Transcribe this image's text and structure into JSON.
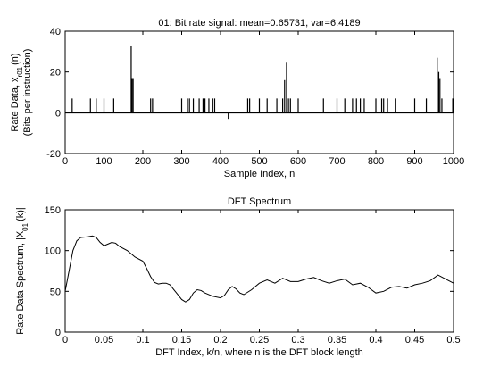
{
  "chart_data": [
    {
      "type": "spike",
      "title": "01: Bit rate signal: mean=0.65731, var=6.4189",
      "xlabel": "Sample Index, n",
      "ylabel": {
        "text": "Rate Data, x",
        "sub": "r01",
        "after": "(n)"
      },
      "ylabel2": "(Bits per instruction)",
      "color": "#000000",
      "xlim": [
        0,
        1000
      ],
      "xticks": [
        0,
        100,
        200,
        300,
        400,
        500,
        600,
        700,
        800,
        900,
        1000
      ],
      "ylim": [
        -20,
        40
      ],
      "yticks": [
        -20,
        0,
        20,
        40
      ],
      "x": [
        18,
        65,
        80,
        100,
        125,
        170,
        172,
        175,
        220,
        225,
        300,
        315,
        320,
        330,
        345,
        355,
        360,
        370,
        380,
        385,
        420,
        470,
        475,
        500,
        520,
        545,
        560,
        565,
        570,
        575,
        580,
        600,
        665,
        700,
        720,
        740,
        750,
        760,
        770,
        800,
        815,
        820,
        830,
        850,
        900,
        930,
        958,
        962,
        965,
        970,
        998
      ],
      "values": [
        7,
        7,
        7,
        7,
        7,
        33,
        17,
        17,
        7,
        7,
        7,
        7,
        7,
        7,
        7,
        7,
        7,
        7,
        7,
        7,
        -3,
        7,
        7,
        7,
        7,
        7,
        7,
        16,
        25,
        7,
        7,
        7,
        7,
        7,
        7,
        7,
        7,
        7,
        7,
        7,
        7,
        7,
        7,
        7,
        7,
        7,
        27,
        20,
        17,
        7,
        7
      ]
    },
    {
      "type": "line",
      "title": "DFT Spectrum",
      "xlabel": "DFT Index, k/n, where n is the DFT block length",
      "ylabel": {
        "text": "Rate Data Spectrum, |X",
        "sub": "01",
        "after": "(k)|"
      },
      "color": "#000000",
      "xlim": [
        0,
        0.5
      ],
      "xticks": [
        0,
        0.05,
        0.1,
        0.15,
        0.2,
        0.25,
        0.3,
        0.35,
        0.4,
        0.45,
        0.5
      ],
      "ylim": [
        0,
        150
      ],
      "yticks": [
        0,
        50,
        100,
        150
      ],
      "x": [
        0,
        0.005,
        0.01,
        0.015,
        0.02,
        0.03,
        0.035,
        0.04,
        0.045,
        0.05,
        0.055,
        0.06,
        0.065,
        0.07,
        0.08,
        0.09,
        0.1,
        0.105,
        0.11,
        0.115,
        0.12,
        0.125,
        0.13,
        0.135,
        0.14,
        0.145,
        0.15,
        0.155,
        0.16,
        0.165,
        0.17,
        0.175,
        0.18,
        0.19,
        0.2,
        0.205,
        0.21,
        0.215,
        0.22,
        0.225,
        0.23,
        0.24,
        0.25,
        0.26,
        0.27,
        0.28,
        0.29,
        0.3,
        0.31,
        0.32,
        0.33,
        0.34,
        0.35,
        0.36,
        0.37,
        0.38,
        0.39,
        0.4,
        0.41,
        0.42,
        0.43,
        0.44,
        0.45,
        0.46,
        0.47,
        0.48,
        0.49,
        0.5
      ],
      "values": [
        50,
        75,
        100,
        112,
        116,
        117,
        118,
        116,
        110,
        106,
        108,
        110,
        109,
        105,
        100,
        92,
        87,
        78,
        68,
        61,
        59,
        60,
        60,
        58,
        52,
        46,
        40,
        37,
        40,
        48,
        52,
        51,
        48,
        44,
        42,
        45,
        52,
        56,
        53,
        48,
        46,
        52,
        60,
        64,
        60,
        66,
        62,
        62,
        65,
        67,
        63,
        60,
        63,
        65,
        58,
        60,
        55,
        48,
        50,
        55,
        56,
        54,
        58,
        60,
        63,
        70,
        65,
        60
      ]
    }
  ]
}
